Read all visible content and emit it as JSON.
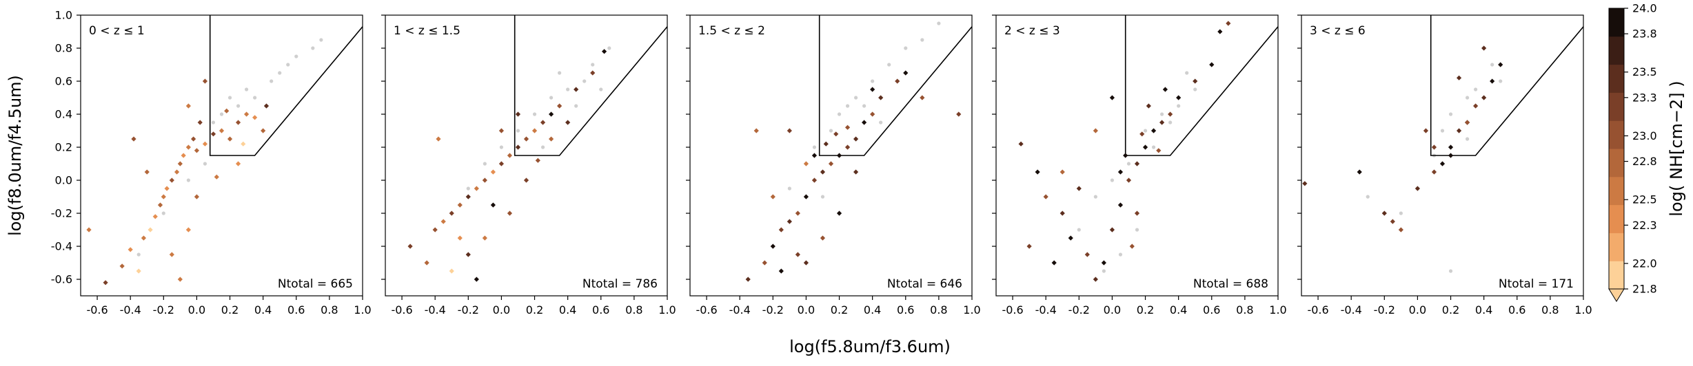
{
  "figure": {
    "xlabel": "log(f5.8um/f3.6um)",
    "ylabel": "log(f8.0um/f4.5um)",
    "colorbar_label": "log( NH[cm−2] )"
  },
  "colorbar": {
    "min": 21.8,
    "max": 24.0,
    "ticks": [
      "21.8",
      "22.0",
      "22.3",
      "22.5",
      "22.8",
      "23.0",
      "23.3",
      "23.5",
      "23.8",
      "24.0"
    ],
    "colors": [
      "#fdd198",
      "#f3ab6b",
      "#e58e50",
      "#cc7a43",
      "#b3673a",
      "#975231",
      "#7a3f28",
      "#5c2e1e",
      "#3b1e15",
      "#160d0a"
    ]
  },
  "colors": {
    "undetected": "#cfcfcf",
    "wedge": "#000000"
  },
  "chart_data": [
    {
      "type": "scatter",
      "title": "0 < z ≤ 1",
      "annotation": "Ntotal = 665",
      "xlim": [
        -0.7,
        1.0
      ],
      "ylim": [
        -0.7,
        1.0
      ],
      "xticks": [
        "-0.6",
        "-0.4",
        "-0.2",
        "0.0",
        "0.2",
        "0.4",
        "0.6",
        "0.8",
        "1.0"
      ],
      "yticks": [
        "-0.6",
        "-0.4",
        "-0.2",
        "0.0",
        "0.2",
        "0.4",
        "0.6",
        "0.8",
        "1.0"
      ],
      "wedge": [
        [
          0.08,
          1.0
        ],
        [
          0.08,
          0.37
        ],
        [
          0.08,
          0.15
        ],
        [
          0.35,
          0.15
        ],
        [
          1.0,
          0.93
        ]
      ],
      "points": [
        [
          -0.32,
          -0.35,
          22.5
        ],
        [
          -0.28,
          -0.3,
          22.0
        ],
        [
          -0.25,
          -0.22,
          22.3
        ],
        [
          -0.22,
          -0.15,
          22.8
        ],
        [
          -0.2,
          -0.1,
          22.5
        ],
        [
          -0.18,
          -0.05,
          22.3
        ],
        [
          -0.15,
          0.0,
          23.0
        ],
        [
          -0.12,
          0.05,
          22.5
        ],
        [
          -0.1,
          0.1,
          22.8
        ],
        [
          -0.08,
          0.15,
          22.3
        ],
        [
          -0.05,
          0.2,
          22.5
        ],
        [
          -0.02,
          0.25,
          23.0
        ],
        [
          0.0,
          0.18,
          22.8
        ],
        [
          0.05,
          0.22,
          22.3
        ],
        [
          0.1,
          0.28,
          23.3
        ],
        [
          0.15,
          0.3,
          22.5
        ],
        [
          0.2,
          0.25,
          22.8
        ],
        [
          0.25,
          0.35,
          23.0
        ],
        [
          0.3,
          0.4,
          22.5
        ],
        [
          0.35,
          0.38,
          22.3
        ],
        [
          0.42,
          0.45,
          23.5
        ],
        [
          0.05,
          0.6,
          23.0
        ],
        [
          -0.4,
          -0.42,
          22.3
        ],
        [
          -0.45,
          -0.52,
          22.8
        ],
        [
          -0.55,
          -0.62,
          23.3
        ],
        [
          -0.65,
          -0.3,
          22.5
        ],
        [
          -0.35,
          -0.55,
          22.0
        ],
        [
          -0.15,
          -0.45,
          22.5
        ],
        [
          -0.05,
          -0.3,
          22.3
        ],
        [
          0.0,
          -0.1,
          22.8
        ],
        [
          0.12,
          0.02,
          22.5
        ],
        [
          0.25,
          0.1,
          22.3
        ],
        [
          -0.38,
          0.25,
          23.0
        ],
        [
          -0.3,
          0.05,
          22.8
        ],
        [
          -0.1,
          -0.6,
          22.5
        ],
        [
          0.18,
          0.42,
          22.8
        ],
        [
          0.02,
          0.35,
          23.3
        ],
        [
          -0.05,
          0.45,
          22.5
        ],
        [
          0.28,
          0.22,
          22.0
        ],
        [
          0.4,
          0.3,
          22.8
        ]
      ],
      "undetected": [
        [
          0.2,
          0.5
        ],
        [
          0.3,
          0.55
        ],
        [
          0.45,
          0.6
        ],
        [
          0.55,
          0.7
        ],
        [
          0.6,
          0.75
        ],
        [
          0.7,
          0.8
        ],
        [
          0.75,
          0.85
        ],
        [
          0.35,
          0.5
        ],
        [
          0.5,
          0.65
        ],
        [
          0.15,
          0.4
        ],
        [
          0.25,
          0.45
        ],
        [
          0.05,
          0.1
        ],
        [
          -0.05,
          0.0
        ],
        [
          -0.2,
          -0.2
        ],
        [
          -0.35,
          -0.45
        ],
        [
          0.1,
          0.35
        ]
      ]
    },
    {
      "type": "scatter",
      "title": "1 < z ≤ 1.5",
      "annotation": "Ntotal = 786",
      "xlim": [
        -0.7,
        1.0
      ],
      "ylim": [
        -0.7,
        1.0
      ],
      "xticks": [
        "-0.6",
        "-0.4",
        "-0.2",
        "0.0",
        "0.2",
        "0.4",
        "0.6",
        "0.8",
        "1.0"
      ],
      "yticks": [],
      "wedge": [
        [
          0.08,
          1.0
        ],
        [
          0.08,
          0.37
        ],
        [
          0.08,
          0.15
        ],
        [
          0.35,
          0.15
        ],
        [
          1.0,
          0.93
        ]
      ],
      "points": [
        [
          -0.4,
          -0.3,
          23.0
        ],
        [
          -0.35,
          -0.25,
          22.5
        ],
        [
          -0.3,
          -0.2,
          23.3
        ],
        [
          -0.25,
          -0.15,
          22.8
        ],
        [
          -0.2,
          -0.1,
          23.5
        ],
        [
          -0.15,
          -0.05,
          22.5
        ],
        [
          -0.1,
          0.0,
          23.0
        ],
        [
          -0.05,
          0.05,
          22.3
        ],
        [
          0.0,
          0.1,
          23.3
        ],
        [
          0.05,
          0.15,
          22.8
        ],
        [
          0.1,
          0.2,
          23.5
        ],
        [
          0.15,
          0.25,
          23.0
        ],
        [
          0.2,
          0.3,
          22.5
        ],
        [
          0.25,
          0.35,
          23.3
        ],
        [
          0.3,
          0.4,
          23.8
        ],
        [
          0.35,
          0.45,
          23.0
        ],
        [
          0.45,
          0.55,
          23.5
        ],
        [
          0.55,
          0.65,
          23.3
        ],
        [
          0.62,
          0.78,
          23.8
        ],
        [
          -0.45,
          -0.5,
          22.8
        ],
        [
          -0.55,
          -0.4,
          23.3
        ],
        [
          -0.2,
          -0.45,
          23.5
        ],
        [
          -0.1,
          -0.35,
          22.5
        ],
        [
          0.05,
          -0.2,
          23.0
        ],
        [
          0.15,
          0.0,
          23.3
        ],
        [
          -0.3,
          -0.55,
          22.0
        ],
        [
          -0.15,
          -0.6,
          23.8
        ],
        [
          0.0,
          0.3,
          23.0
        ],
        [
          0.1,
          0.4,
          23.5
        ],
        [
          -0.38,
          0.25,
          22.5
        ],
        [
          0.22,
          0.12,
          23.0
        ],
        [
          -0.05,
          -0.15,
          23.8
        ],
        [
          0.3,
          0.25,
          22.8
        ],
        [
          0.4,
          0.35,
          23.5
        ],
        [
          -0.25,
          -0.35,
          22.3
        ]
      ],
      "undetected": [
        [
          0.2,
          0.4
        ],
        [
          0.3,
          0.5
        ],
        [
          0.4,
          0.55
        ],
        [
          0.5,
          0.6
        ],
        [
          0.55,
          0.7
        ],
        [
          0.65,
          0.8
        ],
        [
          0.45,
          0.45
        ],
        [
          0.1,
          0.3
        ],
        [
          0.0,
          0.2
        ],
        [
          -0.1,
          0.1
        ],
        [
          -0.2,
          -0.05
        ],
        [
          0.35,
          0.65
        ],
        [
          0.6,
          0.55
        ],
        [
          0.25,
          0.2
        ]
      ]
    },
    {
      "type": "scatter",
      "title": "1.5 < z ≤ 2",
      "annotation": "Ntotal = 646",
      "xlim": [
        -0.7,
        1.0
      ],
      "ylim": [
        -0.7,
        1.0
      ],
      "xticks": [
        "-0.6",
        "-0.4",
        "-0.2",
        "0.0",
        "0.2",
        "0.4",
        "0.6",
        "0.8",
        "1.0"
      ],
      "yticks": [],
      "wedge": [
        [
          0.08,
          1.0
        ],
        [
          0.08,
          0.37
        ],
        [
          0.08,
          0.15
        ],
        [
          0.35,
          0.15
        ],
        [
          1.0,
          0.93
        ]
      ],
      "points": [
        [
          -0.35,
          -0.6,
          23.5
        ],
        [
          -0.25,
          -0.5,
          23.0
        ],
        [
          -0.2,
          -0.4,
          23.8
        ],
        [
          -0.15,
          -0.3,
          23.3
        ],
        [
          -0.1,
          -0.25,
          23.5
        ],
        [
          -0.05,
          -0.2,
          23.0
        ],
        [
          0.0,
          -0.1,
          23.8
        ],
        [
          0.05,
          0.0,
          23.3
        ],
        [
          0.1,
          0.05,
          23.5
        ],
        [
          0.15,
          0.1,
          23.0
        ],
        [
          0.2,
          0.15,
          23.8
        ],
        [
          0.25,
          0.2,
          23.3
        ],
        [
          0.3,
          0.25,
          23.5
        ],
        [
          0.35,
          0.35,
          23.8
        ],
        [
          0.4,
          0.4,
          23.0
        ],
        [
          0.45,
          0.5,
          23.5
        ],
        [
          0.55,
          0.6,
          23.3
        ],
        [
          0.6,
          0.65,
          23.8
        ],
        [
          0.7,
          0.5,
          23.0
        ],
        [
          -0.1,
          0.3,
          23.3
        ],
        [
          -0.3,
          0.3,
          22.8
        ],
        [
          0.0,
          -0.5,
          23.5
        ],
        [
          0.1,
          -0.35,
          23.0
        ],
        [
          0.2,
          -0.2,
          23.8
        ],
        [
          -0.05,
          -0.45,
          23.3
        ],
        [
          0.05,
          0.15,
          24.0
        ],
        [
          0.12,
          0.22,
          23.5
        ],
        [
          0.25,
          0.32,
          23.0
        ],
        [
          0.92,
          0.4,
          23.3
        ],
        [
          -0.2,
          -0.1,
          22.8
        ],
        [
          0.3,
          0.05,
          23.5
        ],
        [
          -0.15,
          -0.55,
          23.8
        ],
        [
          0.0,
          0.1,
          22.5
        ],
        [
          0.18,
          0.28,
          23.3
        ],
        [
          0.4,
          0.55,
          23.8
        ]
      ],
      "undetected": [
        [
          0.2,
          0.4
        ],
        [
          0.3,
          0.5
        ],
        [
          0.4,
          0.6
        ],
        [
          0.5,
          0.7
        ],
        [
          0.6,
          0.8
        ],
        [
          0.7,
          0.85
        ],
        [
          0.8,
          0.95
        ],
        [
          0.35,
          0.45
        ],
        [
          0.15,
          0.3
        ],
        [
          0.05,
          0.2
        ],
        [
          -0.1,
          -0.05
        ],
        [
          0.1,
          -0.1
        ],
        [
          0.45,
          0.35
        ],
        [
          0.25,
          0.45
        ]
      ]
    },
    {
      "type": "scatter",
      "title": "2 < z ≤ 3",
      "annotation": "Ntotal = 688",
      "xlim": [
        -0.7,
        1.0
      ],
      "ylim": [
        -0.7,
        1.0
      ],
      "xticks": [
        "-0.6",
        "-0.4",
        "-0.2",
        "0.0",
        "0.2",
        "0.4",
        "0.6",
        "0.8",
        "1.0"
      ],
      "yticks": [],
      "wedge": [
        [
          0.08,
          1.0
        ],
        [
          0.08,
          0.37
        ],
        [
          0.08,
          0.15
        ],
        [
          0.35,
          0.15
        ],
        [
          1.0,
          0.93
        ]
      ],
      "points": [
        [
          -0.55,
          0.22,
          23.5
        ],
        [
          -0.45,
          0.05,
          23.8
        ],
        [
          -0.4,
          -0.1,
          23.0
        ],
        [
          -0.3,
          -0.2,
          23.5
        ],
        [
          -0.25,
          -0.35,
          23.8
        ],
        [
          -0.15,
          -0.45,
          23.3
        ],
        [
          -0.05,
          -0.5,
          24.0
        ],
        [
          0.0,
          -0.3,
          23.5
        ],
        [
          0.05,
          -0.15,
          23.8
        ],
        [
          0.1,
          0.0,
          23.3
        ],
        [
          0.15,
          0.1,
          23.5
        ],
        [
          0.2,
          0.2,
          23.8
        ],
        [
          0.25,
          0.3,
          24.0
        ],
        [
          0.3,
          0.35,
          23.5
        ],
        [
          0.35,
          0.4,
          23.3
        ],
        [
          0.4,
          0.5,
          23.8
        ],
        [
          0.5,
          0.6,
          23.5
        ],
        [
          0.6,
          0.7,
          24.0
        ],
        [
          0.65,
          0.9,
          23.8
        ],
        [
          0.7,
          0.95,
          23.3
        ],
        [
          -0.1,
          -0.6,
          23.5
        ],
        [
          0.12,
          -0.4,
          23.0
        ],
        [
          -0.3,
          0.05,
          22.8
        ],
        [
          -0.2,
          -0.05,
          23.5
        ],
        [
          0.0,
          0.5,
          23.8
        ],
        [
          0.18,
          0.28,
          23.3
        ],
        [
          0.08,
          0.15,
          24.0
        ],
        [
          -0.5,
          -0.4,
          23.3
        ],
        [
          0.28,
          0.18,
          23.0
        ],
        [
          -0.1,
          0.3,
          22.8
        ],
        [
          0.05,
          0.05,
          23.8
        ],
        [
          0.22,
          0.45,
          23.5
        ],
        [
          0.32,
          0.55,
          23.8
        ],
        [
          -0.35,
          -0.5,
          24.0
        ],
        [
          0.15,
          -0.2,
          23.3
        ]
      ],
      "undetected": [
        [
          0.2,
          0.3
        ],
        [
          0.3,
          0.4
        ],
        [
          0.4,
          0.45
        ],
        [
          0.5,
          0.55
        ],
        [
          0.25,
          0.2
        ],
        [
          0.1,
          0.1
        ],
        [
          0.0,
          0.0
        ],
        [
          -0.1,
          -0.1
        ],
        [
          -0.2,
          -0.3
        ],
        [
          0.15,
          -0.3
        ],
        [
          0.05,
          -0.45
        ],
        [
          -0.05,
          -0.55
        ],
        [
          0.35,
          0.35
        ],
        [
          0.45,
          0.65
        ]
      ]
    },
    {
      "type": "scatter",
      "title": "3 < z ≤ 6",
      "annotation": "Ntotal = 171",
      "xlim": [
        -0.7,
        1.0
      ],
      "ylim": [
        -0.7,
        1.0
      ],
      "xticks": [
        "-0.6",
        "-0.4",
        "-0.2",
        "0.0",
        "0.2",
        "0.4",
        "0.6",
        "0.8",
        "1.0"
      ],
      "yticks": [],
      "wedge": [
        [
          0.08,
          1.0
        ],
        [
          0.08,
          0.37
        ],
        [
          0.08,
          0.15
        ],
        [
          0.35,
          0.15
        ],
        [
          1.0,
          0.93
        ]
      ],
      "points": [
        [
          -0.68,
          -0.02,
          23.5
        ],
        [
          -0.35,
          0.05,
          23.8
        ],
        [
          -0.2,
          -0.2,
          23.5
        ],
        [
          -0.15,
          -0.25,
          23.3
        ],
        [
          -0.1,
          -0.3,
          23.0
        ],
        [
          0.0,
          -0.05,
          23.5
        ],
        [
          0.1,
          0.05,
          23.3
        ],
        [
          0.15,
          0.1,
          23.8
        ],
        [
          0.2,
          0.2,
          24.0
        ],
        [
          0.25,
          0.3,
          23.5
        ],
        [
          0.3,
          0.35,
          23.8
        ],
        [
          0.35,
          0.45,
          23.3
        ],
        [
          0.4,
          0.5,
          23.5
        ],
        [
          0.45,
          0.6,
          24.0
        ],
        [
          0.5,
          0.7,
          23.8
        ],
        [
          0.4,
          0.8,
          23.5
        ],
        [
          0.3,
          0.35,
          23.0
        ],
        [
          0.1,
          0.2,
          23.3
        ],
        [
          0.2,
          0.15,
          23.8
        ],
        [
          0.25,
          0.62,
          23.5
        ],
        [
          0.05,
          0.3,
          23.3
        ]
      ],
      "undetected": [
        [
          0.2,
          0.4
        ],
        [
          0.3,
          0.5
        ],
        [
          0.35,
          0.55
        ],
        [
          0.45,
          0.7
        ],
        [
          0.1,
          0.15
        ],
        [
          0.0,
          -0.05
        ],
        [
          -0.1,
          -0.2
        ],
        [
          0.2,
          -0.55
        ],
        [
          0.3,
          0.25
        ],
        [
          0.15,
          0.3
        ],
        [
          0.5,
          0.6
        ],
        [
          -0.3,
          -0.1
        ]
      ]
    }
  ]
}
